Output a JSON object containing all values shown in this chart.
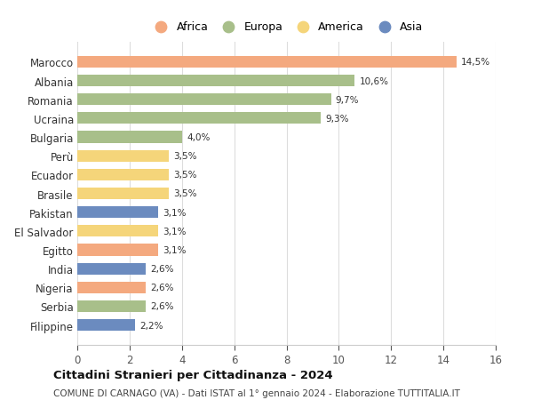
{
  "countries": [
    "Marocco",
    "Albania",
    "Romania",
    "Ucraina",
    "Bulgaria",
    "Perù",
    "Ecuador",
    "Brasile",
    "Pakistan",
    "El Salvador",
    "Egitto",
    "India",
    "Nigeria",
    "Serbia",
    "Filippine"
  ],
  "values": [
    14.5,
    10.6,
    9.7,
    9.3,
    4.0,
    3.5,
    3.5,
    3.5,
    3.1,
    3.1,
    3.1,
    2.6,
    2.6,
    2.6,
    2.2
  ],
  "labels": [
    "14,5%",
    "10,6%",
    "9,7%",
    "9,3%",
    "4,0%",
    "3,5%",
    "3,5%",
    "3,5%",
    "3,1%",
    "3,1%",
    "3,1%",
    "2,6%",
    "2,6%",
    "2,6%",
    "2,2%"
  ],
  "continents": [
    "Africa",
    "Europa",
    "Europa",
    "Europa",
    "Europa",
    "America",
    "America",
    "America",
    "Asia",
    "America",
    "Africa",
    "Asia",
    "Africa",
    "Europa",
    "Asia"
  ],
  "colors": {
    "Africa": "#F4A97F",
    "Europa": "#A8BF8A",
    "America": "#F5D57A",
    "Asia": "#6B8BBF"
  },
  "legend_order": [
    "Africa",
    "Europa",
    "America",
    "Asia"
  ],
  "title": "Cittadini Stranieri per Cittadinanza - 2024",
  "subtitle": "COMUNE DI CARNAGO (VA) - Dati ISTAT al 1° gennaio 2024 - Elaborazione TUTTITALIA.IT",
  "xlim": [
    0,
    16
  ],
  "xticks": [
    0,
    2,
    4,
    6,
    8,
    10,
    12,
    14,
    16
  ],
  "background_color": "#ffffff",
  "grid_color": "#dddddd"
}
